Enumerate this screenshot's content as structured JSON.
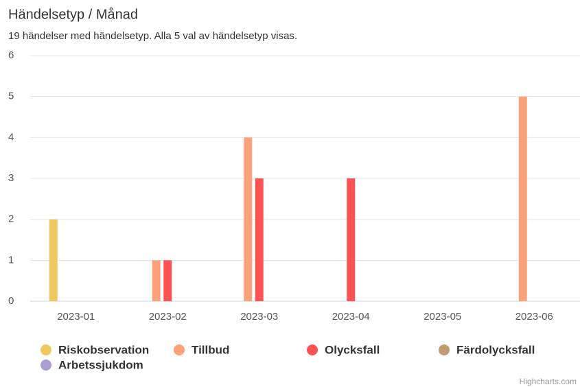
{
  "chart_data": {
    "type": "bar",
    "title": "Händelsetyp / Månad",
    "subtitle": "19 händelser med händelsetyp. Alla 5 val av händelsetyp visas.",
    "credits": "Highcharts.com",
    "categories": [
      "2023-01",
      "2023-02",
      "2023-03",
      "2023-04",
      "2023-05",
      "2023-06"
    ],
    "series": [
      {
        "name": "Riskobservation",
        "color": "#f0c862",
        "values": [
          2,
          0,
          0,
          0,
          0,
          0
        ]
      },
      {
        "name": "Tillbud",
        "color": "#fba27a",
        "values": [
          0,
          1,
          4,
          0,
          0,
          5
        ]
      },
      {
        "name": "Olycksfall",
        "color": "#ff5252",
        "values": [
          0,
          1,
          3,
          3,
          0,
          0
        ]
      },
      {
        "name": "Färdolycksfall",
        "color": "#c39b72",
        "values": [
          0,
          0,
          0,
          0,
          0,
          0
        ]
      },
      {
        "name": "Arbetssjukdom",
        "color": "#ab9fd1",
        "values": [
          0,
          0,
          0,
          0,
          0,
          0
        ]
      }
    ],
    "ylim": [
      0,
      6
    ],
    "yticks": [
      0,
      1,
      2,
      3,
      4,
      5,
      6
    ],
    "grid": true
  }
}
